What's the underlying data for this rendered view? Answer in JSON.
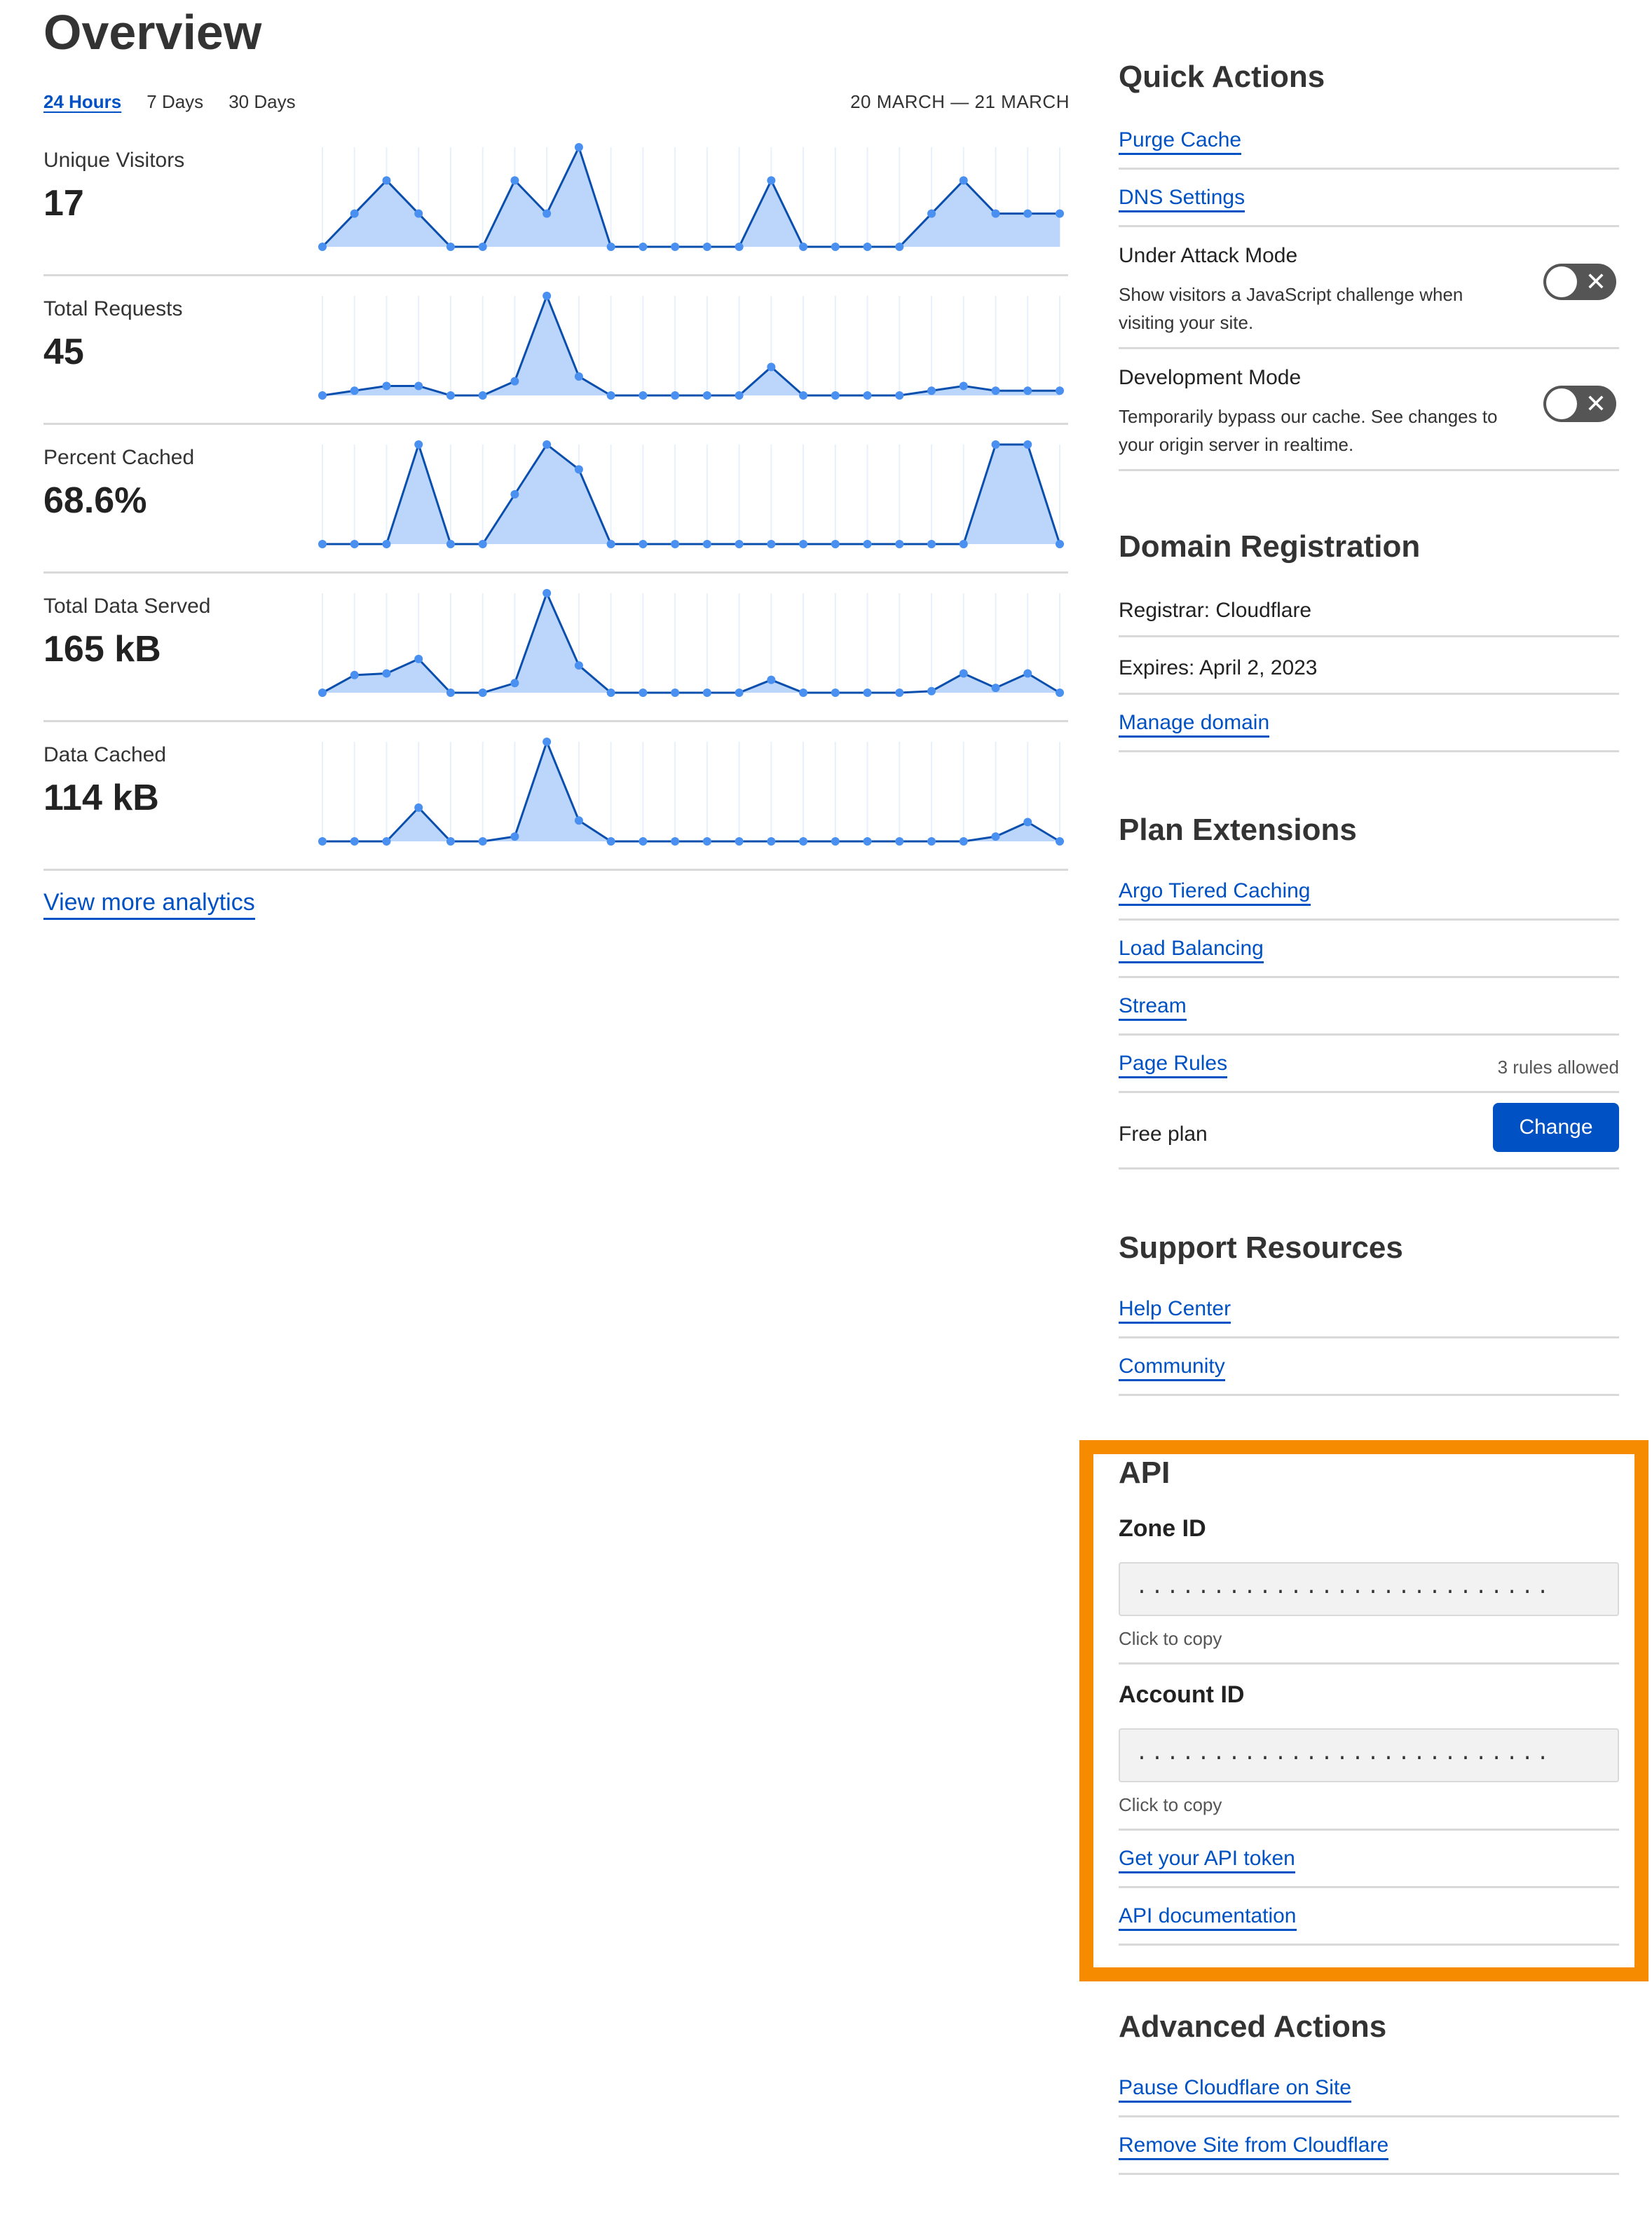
{
  "overview": {
    "title": "Overview",
    "tabs": [
      {
        "label": "24 Hours",
        "active": true
      },
      {
        "label": "7 Days",
        "active": false
      },
      {
        "label": "30 Days",
        "active": false
      }
    ],
    "date_range": "20 MARCH — 21 MARCH",
    "view_more": "View more analytics"
  },
  "colors": {
    "accent": "#0051c3",
    "line": "#0a4fad",
    "fill": "#bcd6fb",
    "dot": "#4a90f0",
    "highlight": "#f68b00"
  },
  "chart_data": [
    {
      "type": "area",
      "label": "Unique Visitors",
      "value": "17",
      "values": [
        0,
        1,
        2,
        1,
        0,
        0,
        2,
        1,
        3,
        0,
        0,
        0,
        0,
        0,
        2,
        0,
        0,
        0,
        0,
        1,
        2,
        1,
        1,
        1
      ]
    },
    {
      "type": "area",
      "label": "Total Requests",
      "value": "45",
      "values": [
        0,
        1,
        2,
        2,
        0,
        0,
        3,
        21,
        4,
        0,
        0,
        0,
        0,
        0,
        6,
        0,
        0,
        0,
        0,
        1,
        2,
        1,
        1,
        1
      ]
    },
    {
      "type": "area",
      "label": "Percent Cached",
      "value": "68.6%",
      "values": [
        0,
        0,
        0,
        100,
        0,
        0,
        50,
        100,
        75,
        0,
        0,
        0,
        0,
        0,
        0,
        0,
        0,
        0,
        0,
        0,
        0,
        100,
        100,
        0
      ]
    },
    {
      "type": "area",
      "label": "Total Data Served",
      "value": "165 kB",
      "values": [
        0,
        11,
        12,
        21,
        0,
        0,
        6,
        62,
        17,
        0,
        0,
        0,
        0,
        0,
        8,
        0,
        0,
        0,
        0,
        1,
        12,
        3,
        12,
        0
      ]
    },
    {
      "type": "area",
      "label": "Data Cached",
      "value": "114 kB",
      "values": [
        0,
        0,
        0,
        21,
        0,
        0,
        3,
        62,
        13,
        0,
        0,
        0,
        0,
        0,
        0,
        0,
        0,
        0,
        0,
        0,
        0,
        3,
        12,
        0
      ]
    }
  ],
  "quick_actions": {
    "title": "Quick Actions",
    "purge": "Purge Cache",
    "dns": "DNS Settings",
    "under_attack": {
      "title": "Under Attack Mode",
      "desc": "Show visitors a JavaScript challenge when visiting your site.",
      "enabled": false
    },
    "dev_mode": {
      "title": "Development Mode",
      "desc": "Temporarily bypass our cache. See changes to your origin server in realtime.",
      "enabled": false
    },
    "toggle_off_glyph": "✕"
  },
  "domain": {
    "title": "Domain Registration",
    "registrar": "Registrar: Cloudflare",
    "expires": "Expires: April 2, 2023",
    "manage": "Manage domain"
  },
  "plan": {
    "title": "Plan Extensions",
    "argo": "Argo Tiered Caching",
    "lb": "Load Balancing",
    "stream": "Stream",
    "page_rules": "Page Rules",
    "page_rules_note": "3 rules allowed",
    "plan_name": "Free plan",
    "change": "Change"
  },
  "support": {
    "title": "Support Resources",
    "help": "Help Center",
    "community": "Community"
  },
  "api": {
    "title": "API",
    "zone_label": "Zone ID",
    "zone_value": "...........................",
    "copy": "Click to copy",
    "account_label": "Account ID",
    "account_value": "...........................",
    "token": "Get your API token",
    "docs": "API documentation"
  },
  "advanced": {
    "title": "Advanced Actions",
    "pause": "Pause Cloudflare on Site",
    "remove": "Remove Site from Cloudflare"
  }
}
